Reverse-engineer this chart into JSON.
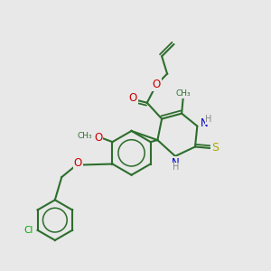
{
  "background_color": "#e8e8e8",
  "bond_color": "#2d6e2d",
  "atom_colors": {
    "O": "#cc0000",
    "N": "#0000cc",
    "S": "#aaaa00",
    "Cl": "#00aa00",
    "C": "#2d6e2d",
    "H": "#888888"
  },
  "fig_width": 3.0,
  "fig_height": 3.0,
  "dpi": 100
}
